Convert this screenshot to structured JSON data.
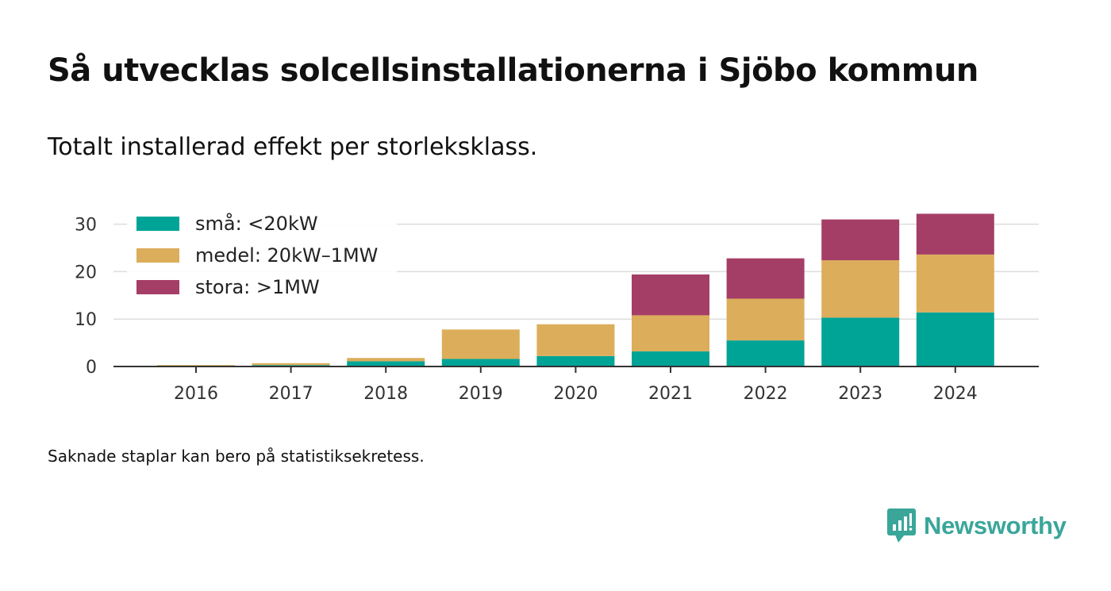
{
  "title": "Så utvecklas solcellsinstallationerna i Sjöbo kommun",
  "subtitle": "Totalt installerad effekt per storleksklass.",
  "note": "Saknade staplar kan bero på statistiksekretess.",
  "brand": {
    "name": "Newsworthy",
    "color": "#3aa69a",
    "icon": "newsworthy-logo-icon"
  },
  "chart_data": {
    "type": "bar",
    "stacked": true,
    "categories": [
      "2016",
      "2017",
      "2018",
      "2019",
      "2020",
      "2021",
      "2022",
      "2023",
      "2024"
    ],
    "series": [
      {
        "name": "små: <20kW",
        "color": "#00a497",
        "values": [
          0.1,
          0.3,
          1.1,
          1.6,
          2.2,
          3.2,
          5.5,
          10.3,
          11.4
        ]
      },
      {
        "name": "medel: 20kW–1MW",
        "color": "#dcad5b",
        "values": [
          0.2,
          0.4,
          0.7,
          6.2,
          6.7,
          7.6,
          8.8,
          12.1,
          12.2
        ]
      },
      {
        "name": "stora: >1MW",
        "color": "#a53e66",
        "values": [
          0,
          0,
          0,
          0,
          0,
          8.6,
          8.5,
          8.6,
          8.6
        ]
      }
    ],
    "yticks": [
      0,
      10,
      20,
      30
    ],
    "ylim": [
      0,
      32
    ],
    "grid": true,
    "legend_position": "top-left"
  }
}
